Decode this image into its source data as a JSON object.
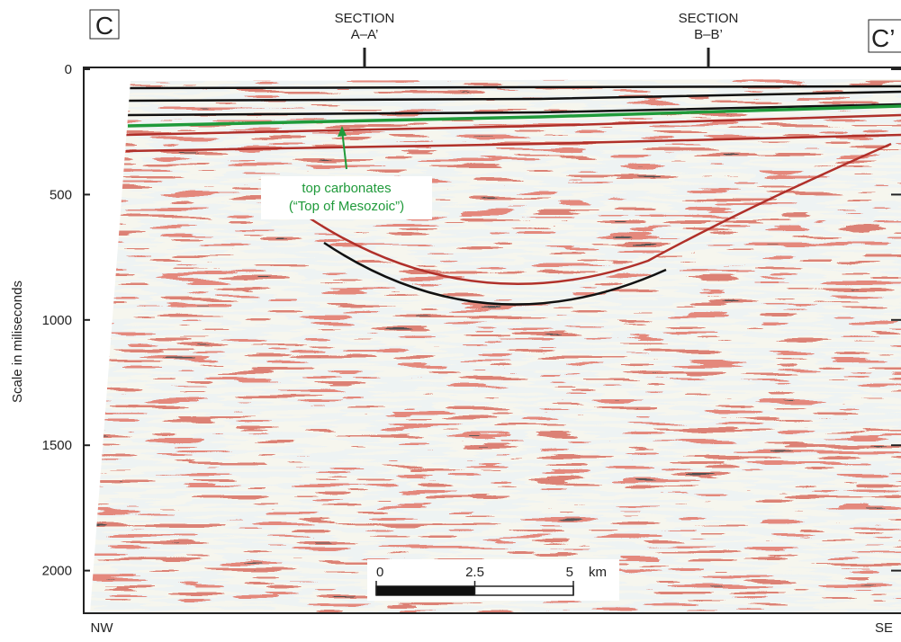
{
  "chart_data": {
    "type": "seismic-section",
    "corner_left": "C",
    "corner_right": "C’",
    "ylabel": "Scale in miliseconds",
    "ylim": [
      0,
      2170
    ],
    "yticks": [
      0,
      500,
      1000,
      1500,
      2000
    ],
    "sections": [
      {
        "top": "SECTION",
        "bottom": "A–A’"
      },
      {
        "top": "SECTION",
        "bottom": "B–B’"
      }
    ],
    "left_end": "NW",
    "right_end": "SE",
    "annotation": [
      "top carbonates",
      "(“Top of Mesozoic”)"
    ],
    "scale_bar": {
      "ticks": [
        0,
        2.5,
        5
      ],
      "unit": "km"
    }
  }
}
